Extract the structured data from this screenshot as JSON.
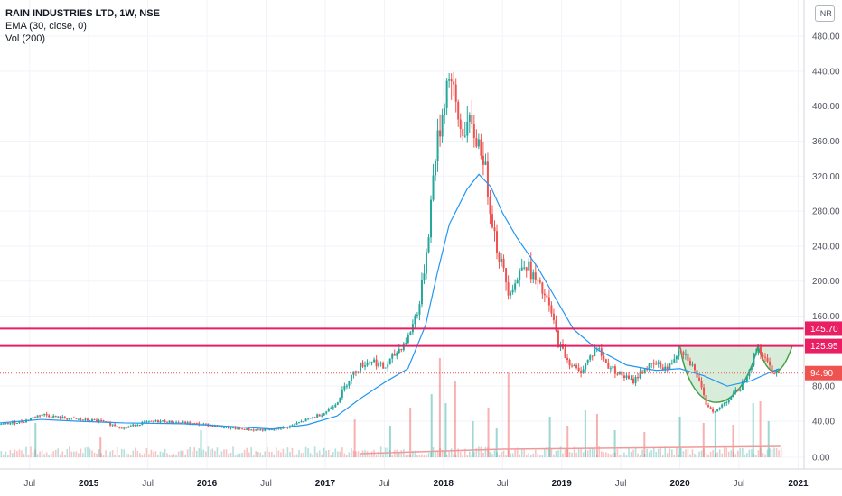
{
  "legend": {
    "title": "RAIN INDUSTRIES LTD, 1W, NSE",
    "ema": "EMA (30, close, 0)",
    "vol": "Vol (200)"
  },
  "currency": "INR",
  "colors": {
    "up": "#26a69a",
    "down": "#ef5350",
    "ema": "#2196f3",
    "level_line": "#e91e63",
    "last_price": "#ef5350",
    "cup_fill": "#c8e6c9",
    "cup_stroke": "#43a047",
    "grid": "#f0f3fa"
  },
  "chart_data": {
    "type": "candlestick",
    "y_ticks": [
      "480.00",
      "440.00",
      "400.00",
      "360.00",
      "320.00",
      "280.00",
      "240.00",
      "200.00",
      "160.00",
      "80.00",
      "40.00",
      "0.00"
    ],
    "x_ticks": [
      {
        "label": "Jul",
        "t": 2014.5
      },
      {
        "label": "2015",
        "t": 2015.0,
        "major": true
      },
      {
        "label": "Jul",
        "t": 2015.5
      },
      {
        "label": "2016",
        "t": 2016.0,
        "major": true
      },
      {
        "label": "Jul",
        "t": 2016.5
      },
      {
        "label": "2017",
        "t": 2017.0,
        "major": true
      },
      {
        "label": "Jul",
        "t": 2017.5
      },
      {
        "label": "2018",
        "t": 2018.0,
        "major": true
      },
      {
        "label": "Jul",
        "t": 2018.5
      },
      {
        "label": "2019",
        "t": 2019.0,
        "major": true
      },
      {
        "label": "Jul",
        "t": 2019.5
      },
      {
        "label": "2020",
        "t": 2020.0,
        "major": true
      },
      {
        "label": "Jul",
        "t": 2020.5
      },
      {
        "label": "2021",
        "t": 2021.0,
        "major": true
      }
    ],
    "t_range": [
      2014.25,
      2021.05
    ],
    "y_range_price": [
      40,
      480
    ],
    "close_path": [
      [
        2014.25,
        36
      ],
      [
        2014.45,
        40
      ],
      [
        2014.6,
        48
      ],
      [
        2014.75,
        44
      ],
      [
        2014.9,
        42
      ],
      [
        2015.1,
        40
      ],
      [
        2015.3,
        32
      ],
      [
        2015.45,
        38
      ],
      [
        2015.6,
        40
      ],
      [
        2015.8,
        38
      ],
      [
        2016.0,
        36
      ],
      [
        2016.2,
        32
      ],
      [
        2016.4,
        30
      ],
      [
        2016.55,
        30
      ],
      [
        2016.7,
        34
      ],
      [
        2016.85,
        42
      ],
      [
        2017.0,
        50
      ],
      [
        2017.1,
        62
      ],
      [
        2017.2,
        88
      ],
      [
        2017.3,
        104
      ],
      [
        2017.4,
        110
      ],
      [
        2017.5,
        100
      ],
      [
        2017.6,
        118
      ],
      [
        2017.7,
        135
      ],
      [
        2017.8,
        175
      ],
      [
        2017.87,
        250
      ],
      [
        2017.93,
        345
      ],
      [
        2017.98,
        380
      ],
      [
        2018.02,
        420
      ],
      [
        2018.05,
        440
      ],
      [
        2018.1,
        400
      ],
      [
        2018.15,
        370
      ],
      [
        2018.2,
        380
      ],
      [
        2018.27,
        365
      ],
      [
        2018.33,
        350
      ],
      [
        2018.38,
        300
      ],
      [
        2018.45,
        240
      ],
      [
        2018.5,
        215
      ],
      [
        2018.55,
        190
      ],
      [
        2018.62,
        200
      ],
      [
        2018.68,
        225
      ],
      [
        2018.74,
        210
      ],
      [
        2018.8,
        195
      ],
      [
        2018.86,
        182
      ],
      [
        2018.92,
        160
      ],
      [
        2018.97,
        130
      ],
      [
        2019.05,
        110
      ],
      [
        2019.15,
        95
      ],
      [
        2019.25,
        115
      ],
      [
        2019.3,
        125
      ],
      [
        2019.38,
        105
      ],
      [
        2019.48,
        95
      ],
      [
        2019.6,
        85
      ],
      [
        2019.7,
        100
      ],
      [
        2019.8,
        105
      ],
      [
        2019.9,
        100
      ],
      [
        2020.0,
        125
      ],
      [
        2020.08,
        110
      ],
      [
        2020.15,
        90
      ],
      [
        2020.22,
        60
      ],
      [
        2020.3,
        50
      ],
      [
        2020.38,
        62
      ],
      [
        2020.45,
        70
      ],
      [
        2020.52,
        80
      ],
      [
        2020.6,
        105
      ],
      [
        2020.66,
        125
      ],
      [
        2020.72,
        110
      ],
      [
        2020.78,
        98
      ],
      [
        2020.84,
        94.9
      ]
    ],
    "ema_path": [
      [
        2014.25,
        38
      ],
      [
        2014.6,
        42
      ],
      [
        2014.9,
        40
      ],
      [
        2015.3,
        38
      ],
      [
        2015.8,
        37
      ],
      [
        2016.2,
        34
      ],
      [
        2016.55,
        31
      ],
      [
        2016.85,
        36
      ],
      [
        2017.1,
        46
      ],
      [
        2017.3,
        66
      ],
      [
        2017.5,
        84
      ],
      [
        2017.7,
        100
      ],
      [
        2017.85,
        150
      ],
      [
        2017.95,
        210
      ],
      [
        2018.05,
        265
      ],
      [
        2018.2,
        305
      ],
      [
        2018.3,
        322
      ],
      [
        2018.4,
        308
      ],
      [
        2018.5,
        278
      ],
      [
        2018.62,
        250
      ],
      [
        2018.8,
        215
      ],
      [
        2018.95,
        180
      ],
      [
        2019.1,
        145
      ],
      [
        2019.3,
        122
      ],
      [
        2019.55,
        104
      ],
      [
        2019.8,
        98
      ],
      [
        2020.0,
        100
      ],
      [
        2020.2,
        92
      ],
      [
        2020.4,
        80
      ],
      [
        2020.6,
        86
      ],
      [
        2020.75,
        95
      ],
      [
        2020.84,
        100
      ]
    ],
    "levels": [
      {
        "label": "145.70",
        "value": 145.7
      },
      {
        "label": "125.95",
        "value": 125.95
      }
    ],
    "last_price": {
      "label": "94.90",
      "value": 94.9
    },
    "cup_pattern": {
      "rim_start": [
        2020.0,
        125.95
      ],
      "bottom": [
        2020.3,
        45
      ],
      "rim_end": [
        2020.66,
        125.95
      ],
      "handle_low": [
        2020.8,
        92
      ],
      "handle_end": [
        2020.95,
        125.95
      ]
    },
    "volume_spikes": [
      [
        2014.55,
        38
      ],
      [
        2015.1,
        22
      ],
      [
        2015.95,
        30
      ],
      [
        2017.25,
        42
      ],
      [
        2017.55,
        35
      ],
      [
        2017.72,
        55
      ],
      [
        2017.9,
        70
      ],
      [
        2017.97,
        110
      ],
      [
        2018.02,
        60
      ],
      [
        2018.1,
        85
      ],
      [
        2018.25,
        40
      ],
      [
        2018.38,
        55
      ],
      [
        2018.45,
        32
      ],
      [
        2018.55,
        95
      ],
      [
        2018.9,
        45
      ],
      [
        2019.05,
        35
      ],
      [
        2019.2,
        52
      ],
      [
        2019.3,
        48
      ],
      [
        2019.45,
        30
      ],
      [
        2019.7,
        28
      ],
      [
        2020.0,
        45
      ],
      [
        2020.2,
        38
      ],
      [
        2020.3,
        50
      ],
      [
        2020.45,
        36
      ],
      [
        2020.62,
        60
      ],
      [
        2020.68,
        62
      ],
      [
        2020.75,
        40
      ]
    ]
  }
}
